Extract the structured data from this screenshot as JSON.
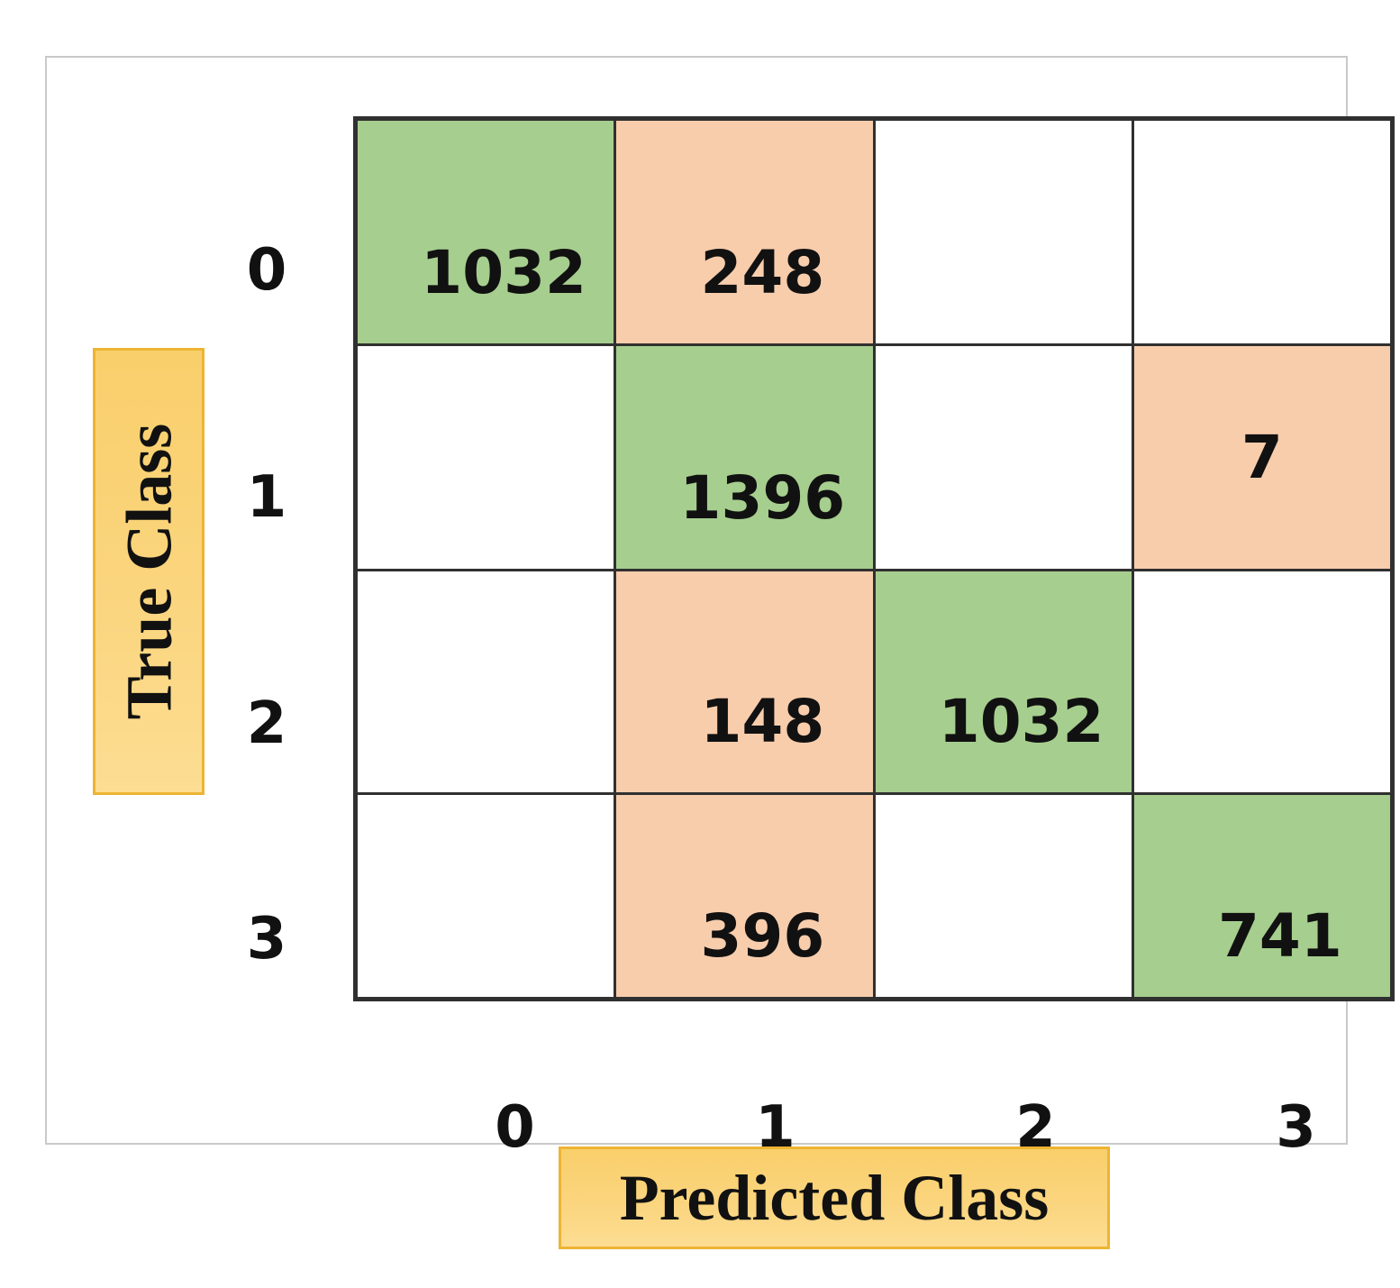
{
  "chart_data": {
    "type": "heatmap",
    "subtype": "confusion-matrix",
    "title": "",
    "xlabel": "Predicted Class",
    "ylabel": "True Class",
    "x_categories": [
      "0",
      "1",
      "2",
      "3"
    ],
    "y_categories": [
      "0",
      "1",
      "2",
      "3"
    ],
    "matrix": [
      [
        1032,
        248,
        null,
        null
      ],
      [
        null,
        1396,
        null,
        7
      ],
      [
        null,
        148,
        1032,
        null
      ],
      [
        null,
        396,
        null,
        741
      ]
    ],
    "cell_fills": [
      [
        "correct",
        "error",
        "empty",
        "empty"
      ],
      [
        "empty",
        "correct",
        "empty",
        "error"
      ],
      [
        "empty",
        "error",
        "correct",
        "empty"
      ],
      [
        "empty",
        "error",
        "empty",
        "correct"
      ]
    ],
    "colors": {
      "correct": "#A6CE8E",
      "error": "#F8CDAC",
      "empty": "#FFFFFF",
      "grid_line": "#303030",
      "axis_title_box_fill": "#FBD57E",
      "axis_title_box_border": "#EDB433",
      "panel_border": "#C9C9C9",
      "text": "#111111"
    },
    "legend_position": "none",
    "grid": true
  }
}
